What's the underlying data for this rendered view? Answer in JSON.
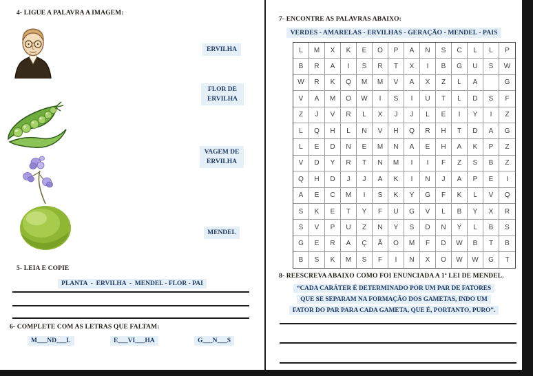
{
  "document_title": "Mendel genetics worksheet (scanned, two pages)",
  "colors": {
    "highlight_bg": "#E5EFF8",
    "highlight_text": "#1F3A63",
    "heading_text": "#211D18",
    "scan_border": "#151515"
  },
  "page_left": {
    "section4": {
      "title": "4- LIGUE A PALAVRA A IMAGEM:",
      "images": [
        "mendel-portrait",
        "open-pea-pod",
        "pea-flower",
        "green-pea"
      ],
      "words": [
        {
          "label": "ERVILHA"
        },
        {
          "label": "FLOR DE\nERVILHA"
        },
        {
          "label": "VAGEM DE\nERVILHA"
        },
        {
          "label": "MENDEL"
        }
      ]
    },
    "section5": {
      "title": "5- LEIA E COPIE",
      "words_line": "PLANTA  -  ERVILHA  -  MENDEL - FLOR - PAI",
      "write_lines": 3
    },
    "section6": {
      "title": "6- COMPLETE COM AS LETRAS QUE FALTAM:",
      "items": [
        {
          "label": "M___ND___L"
        },
        {
          "label": "E___VI___HA"
        },
        {
          "label": "G___N___S"
        }
      ]
    }
  },
  "page_right": {
    "section7": {
      "title": "7- ENCONTRE AS PALAVRAS ABAIXO:",
      "words_line": "VERDES - AMARELAS - ERVILHAS - GERAÇÃO - MENDEL - PAIS",
      "grid": [
        [
          "L",
          "M",
          "X",
          "K",
          "E",
          "O",
          "P",
          "A",
          "N",
          "S",
          "C",
          "L",
          "L",
          "P"
        ],
        [
          "B",
          "R",
          "A",
          "I",
          "S",
          "R",
          "T",
          "X",
          "I",
          "B",
          "G",
          "U",
          "S",
          "W"
        ],
        [
          "W",
          "R",
          "K",
          "Q",
          "M",
          "M",
          "V",
          "A",
          "X",
          "Z",
          "L",
          "A",
          "",
          "G"
        ],
        [
          "V",
          "A",
          "M",
          "O",
          "W",
          "I",
          "S",
          "I",
          "U",
          "T",
          "L",
          "D",
          "S",
          "F"
        ],
        [
          "Z",
          "J",
          "V",
          "R",
          "L",
          "X",
          "J",
          "J",
          "L",
          "E",
          "I",
          "Y",
          "I",
          "Z"
        ],
        [
          "L",
          "Q",
          "H",
          "L",
          "N",
          "V",
          "H",
          "Q",
          "R",
          "H",
          "T",
          "D",
          "A",
          "G"
        ],
        [
          "L",
          "E",
          "D",
          "N",
          "E",
          "M",
          "N",
          "A",
          "E",
          "H",
          "A",
          "K",
          "P",
          "Z"
        ],
        [
          "V",
          "D",
          "Y",
          "R",
          "T",
          "N",
          "M",
          "I",
          "I",
          "F",
          "Z",
          "S",
          "B",
          "Z"
        ],
        [
          "Q",
          "H",
          "D",
          "J",
          "J",
          "A",
          "K",
          "I",
          "N",
          "J",
          "A",
          "P",
          "E",
          "I"
        ],
        [
          "A",
          "E",
          "C",
          "M",
          "I",
          "S",
          "K",
          "Y",
          "G",
          "F",
          "K",
          "L",
          "V",
          "Q"
        ],
        [
          "S",
          "K",
          "E",
          "T",
          "Y",
          "F",
          "U",
          "G",
          "V",
          "L",
          "B",
          "Y",
          "X",
          "R"
        ],
        [
          "S",
          "V",
          "P",
          "U",
          "Z",
          "N",
          "Y",
          "S",
          "D",
          "N",
          "Y",
          "L",
          "B",
          "S"
        ],
        [
          "G",
          "E",
          "R",
          "A",
          "Ç",
          "Ã",
          "O",
          "M",
          "F",
          "D",
          "W",
          "B",
          "T",
          "B"
        ],
        [
          "B",
          "S",
          "K",
          "M",
          "S",
          "F",
          "I",
          "N",
          "X",
          "O",
          "W",
          "W",
          "G",
          "T"
        ]
      ]
    },
    "section8": {
      "title": "8- REESCREVA ABAIXO COMO FOI ENUNCIADA A 1ª LEI DE MENDEL.",
      "quote_lines": [
        "“CADA CARÁTER É DETERMINADO POR UM PAR DE FATORES",
        "QUE SE SEPARAM NA FORMAÇÃO DOS GAMETAS, INDO UM",
        "FATOR DO PAR PARA CADA GAMETA, QUE É, PORTANTO, PURO”."
      ],
      "write_lines": 3
    }
  }
}
